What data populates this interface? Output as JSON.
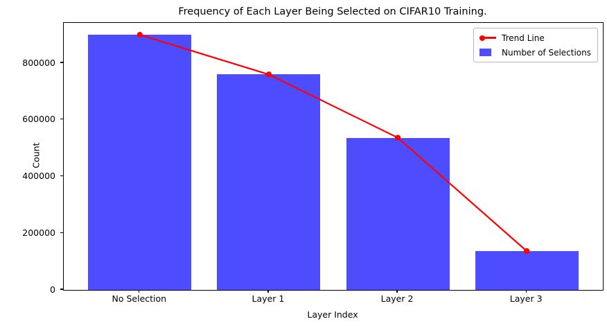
{
  "chart_data": {
    "type": "bar",
    "title": "Frequency of Each Layer Being Selected on CIFAR10 Training.",
    "xlabel": "Layer Index",
    "ylabel": "Count",
    "categories": [
      "No Selection",
      "Layer 1",
      "Layer 2",
      "Layer 3"
    ],
    "series": [
      {
        "name": "Number of Selections",
        "type": "bar",
        "color": "#4d4dff",
        "values": [
          900000,
          760000,
          537000,
          137000
        ]
      },
      {
        "name": "Trend Line",
        "type": "line",
        "color": "#ff0000",
        "marker": "circle",
        "values": [
          900000,
          760000,
          537000,
          137000
        ]
      }
    ],
    "yticks": [
      0,
      200000,
      400000,
      600000,
      800000
    ],
    "ylim": [
      0,
      942000
    ],
    "bar_width_fraction": 0.8,
    "x_edge_margin_units": 0.59,
    "grid": false,
    "legend_position": "upper right"
  },
  "colors": {
    "bar": "#4d4dff",
    "trend": "#ff0000",
    "axis": "#000000",
    "legend_border": "#b7b7b7"
  }
}
